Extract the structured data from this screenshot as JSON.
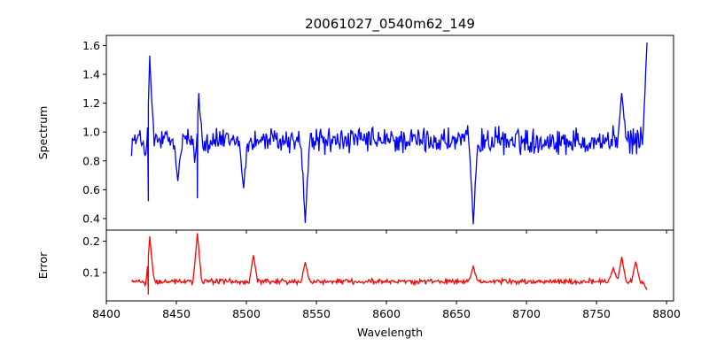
{
  "chart_data": {
    "type": "line",
    "title": "20061027_0540m62_149",
    "xlabel": "Wavelength",
    "xlim": [
      8400,
      8805
    ],
    "xticks": [
      "8400",
      "8450",
      "8500",
      "8550",
      "8600",
      "8650",
      "8700",
      "8750",
      "8800"
    ],
    "xtick_values": [
      8400,
      8450,
      8500,
      8550,
      8600,
      8650,
      8700,
      8750,
      8800
    ],
    "panels": [
      {
        "name": "spectrum",
        "ylabel": "Spectrum",
        "ylim": [
          0.32,
          1.67
        ],
        "yticks": [
          "0.4",
          "0.6",
          "0.8",
          "1.0",
          "1.2",
          "1.4",
          "1.6"
        ],
        "ytick_values": [
          0.4,
          0.6,
          0.8,
          1.0,
          1.2,
          1.4,
          1.6
        ],
        "color": "#0000ff",
        "series": {
          "x_start": 8418,
          "x_end": 8786,
          "baseline": 0.94,
          "noise": 0.085,
          "features": [
            {
              "x": 8430,
              "y": 0.52
            },
            {
              "x": 8431,
              "y": 1.53
            },
            {
              "x": 8465,
              "y": 0.54
            },
            {
              "x": 8466,
              "y": 1.27
            },
            {
              "x": 8451,
              "y": 0.66
            },
            {
              "x": 8498,
              "y": 0.61
            },
            {
              "x": 8542,
              "y": 0.37
            },
            {
              "x": 8662,
              "y": 0.36
            },
            {
              "x": 8768,
              "y": 1.27
            },
            {
              "x": 8786,
              "y": 1.62
            }
          ]
        }
      },
      {
        "name": "error",
        "ylabel": "Error",
        "ylim": [
          0.01,
          0.235
        ],
        "yticks": [
          "0.1",
          "0.2"
        ],
        "ytick_values": [
          0.1,
          0.2
        ],
        "color": "#ff0000",
        "series": {
          "x_start": 8418,
          "x_end": 8786,
          "baseline": 0.072,
          "noise": 0.008,
          "features": [
            {
              "x": 8430,
              "y": 0.03
            },
            {
              "x": 8431,
              "y": 0.215
            },
            {
              "x": 8465,
              "y": 0.225
            },
            {
              "x": 8505,
              "y": 0.155
            },
            {
              "x": 8542,
              "y": 0.133
            },
            {
              "x": 8662,
              "y": 0.12
            },
            {
              "x": 8762,
              "y": 0.115
            },
            {
              "x": 8768,
              "y": 0.15
            },
            {
              "x": 8778,
              "y": 0.135
            },
            {
              "x": 8786,
              "y": 0.045
            }
          ]
        }
      }
    ]
  }
}
